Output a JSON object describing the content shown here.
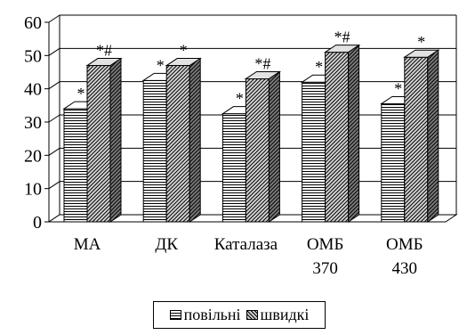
{
  "chart_data": {
    "type": "bar",
    "style": "3d-clustered",
    "categories": [
      [
        "МА"
      ],
      [
        "ДК"
      ],
      [
        "Каталаза"
      ],
      [
        "ОМБ",
        "370"
      ],
      [
        "ОМБ",
        "430"
      ]
    ],
    "series": [
      {
        "name": "повільні",
        "values": [
          34,
          42.5,
          32.5,
          42,
          35.5
        ],
        "annotations": [
          "*",
          "*",
          "*",
          "*",
          "*"
        ]
      },
      {
        "name": "швидкі",
        "values": [
          47,
          47,
          43,
          51,
          49.5
        ],
        "annotations": [
          "*#",
          "*",
          "*#",
          "*#",
          "*"
        ]
      }
    ],
    "ylim": [
      0,
      60
    ],
    "yticks": [
      0,
      10,
      20,
      30,
      40,
      50,
      60
    ],
    "grid": true,
    "legend_position": "bottom",
    "title": "",
    "xlabel": "",
    "ylabel": ""
  },
  "legend": {
    "items": [
      {
        "label": "повільні",
        "pattern": "horizontal-stripes"
      },
      {
        "label": "швидкі",
        "pattern": "diagonal-hatch"
      }
    ]
  }
}
